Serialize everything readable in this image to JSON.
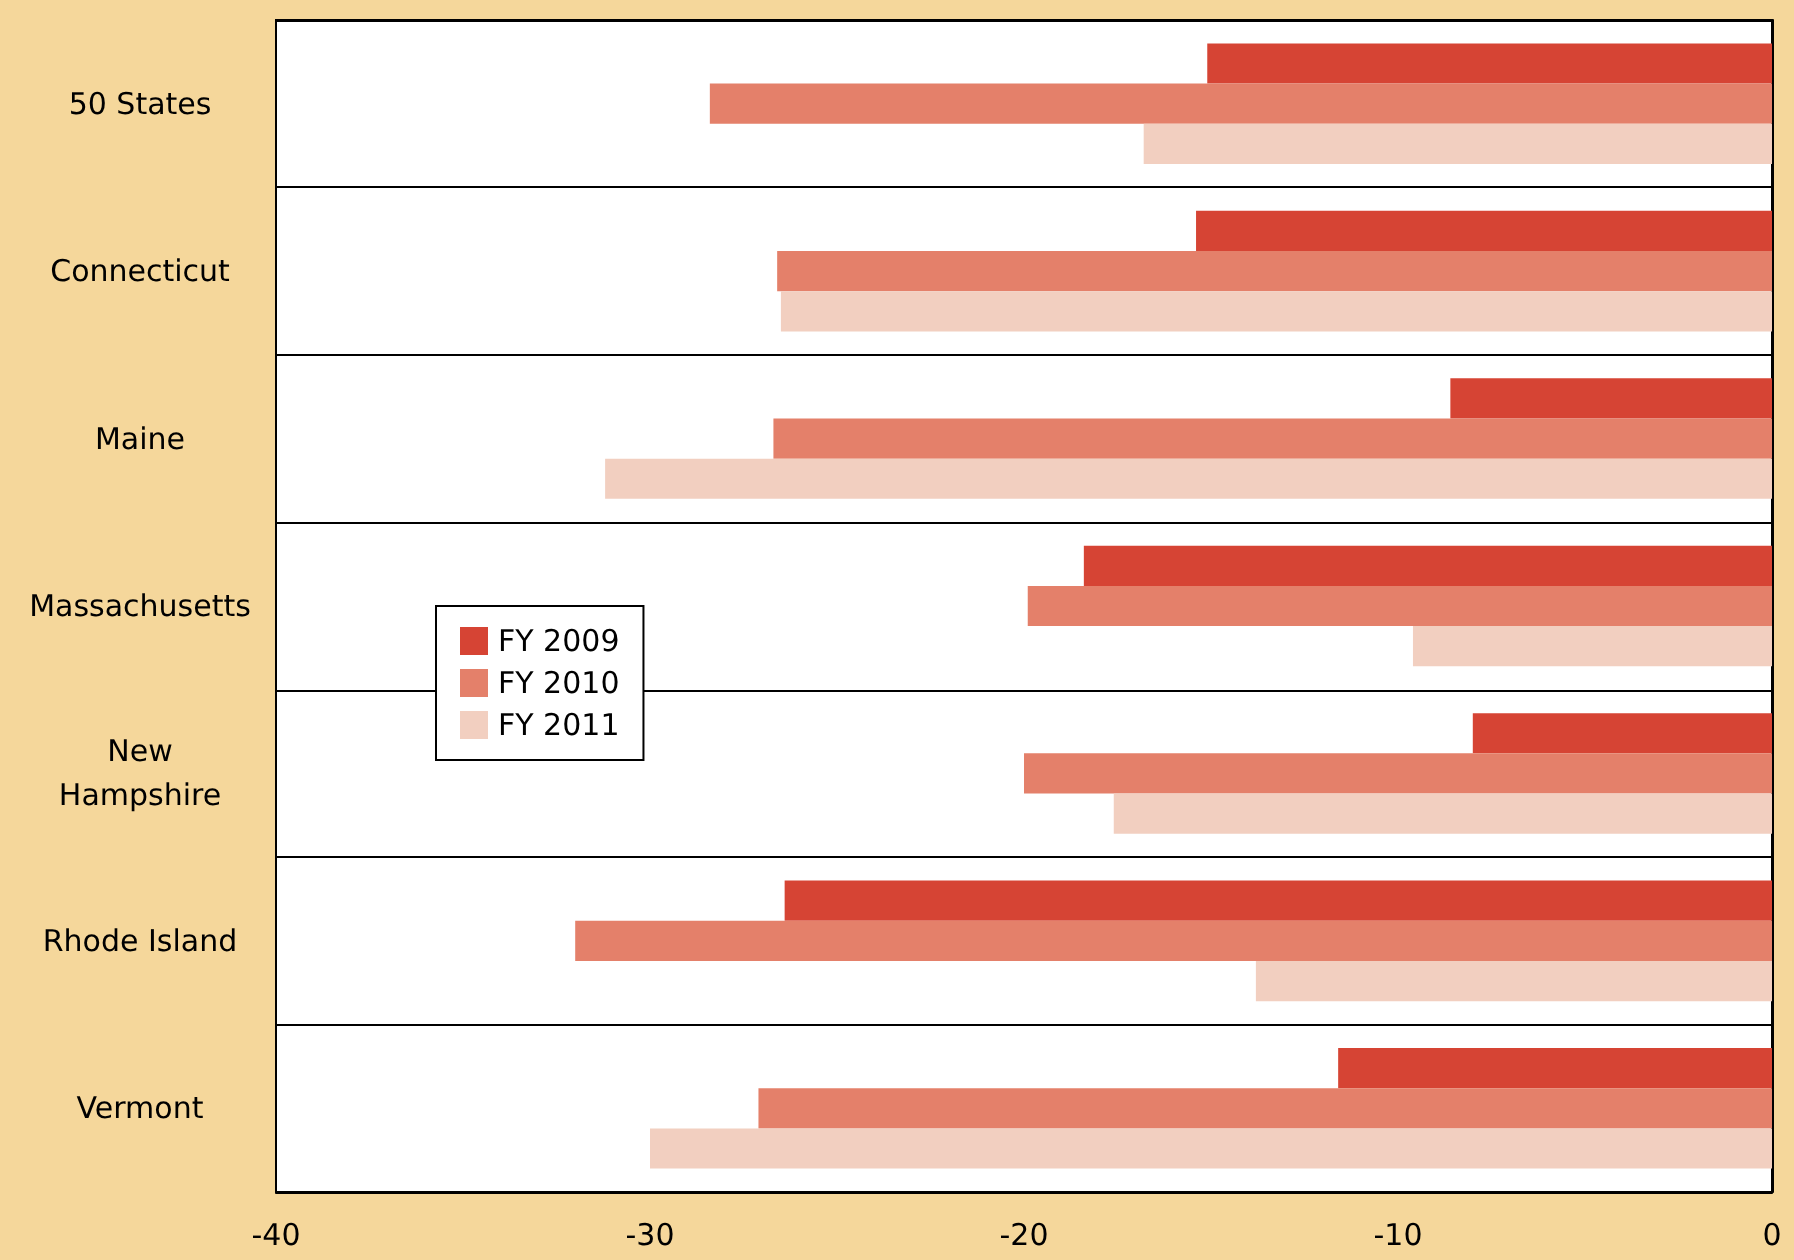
{
  "chart_data": {
    "type": "bar",
    "orientation": "horizontal",
    "categories": [
      "50 States",
      "Connecticut",
      "Maine",
      "Massachusetts",
      "New\nHampshire",
      "Rhode Island",
      "Vermont"
    ],
    "series": [
      {
        "name": "FY 2009",
        "color": "#d64434",
        "values": [
          -15.1,
          -15.4,
          -8.6,
          -18.4,
          -8.0,
          -26.4,
          -11.6
        ]
      },
      {
        "name": "FY 2010",
        "color": "#e4806a",
        "values": [
          -28.4,
          -26.6,
          -26.7,
          -19.9,
          -20.0,
          -32.0,
          -27.1
        ]
      },
      {
        "name": "FY 2011",
        "color": "#f2cfc0",
        "values": [
          -16.8,
          -26.5,
          -31.2,
          -9.6,
          -17.6,
          -13.8,
          -30.0
        ]
      }
    ],
    "xlim": [
      -40,
      0
    ],
    "xticks": [
      -40,
      -30,
      -20,
      -10,
      0
    ],
    "grid": "y",
    "legend": "left"
  }
}
